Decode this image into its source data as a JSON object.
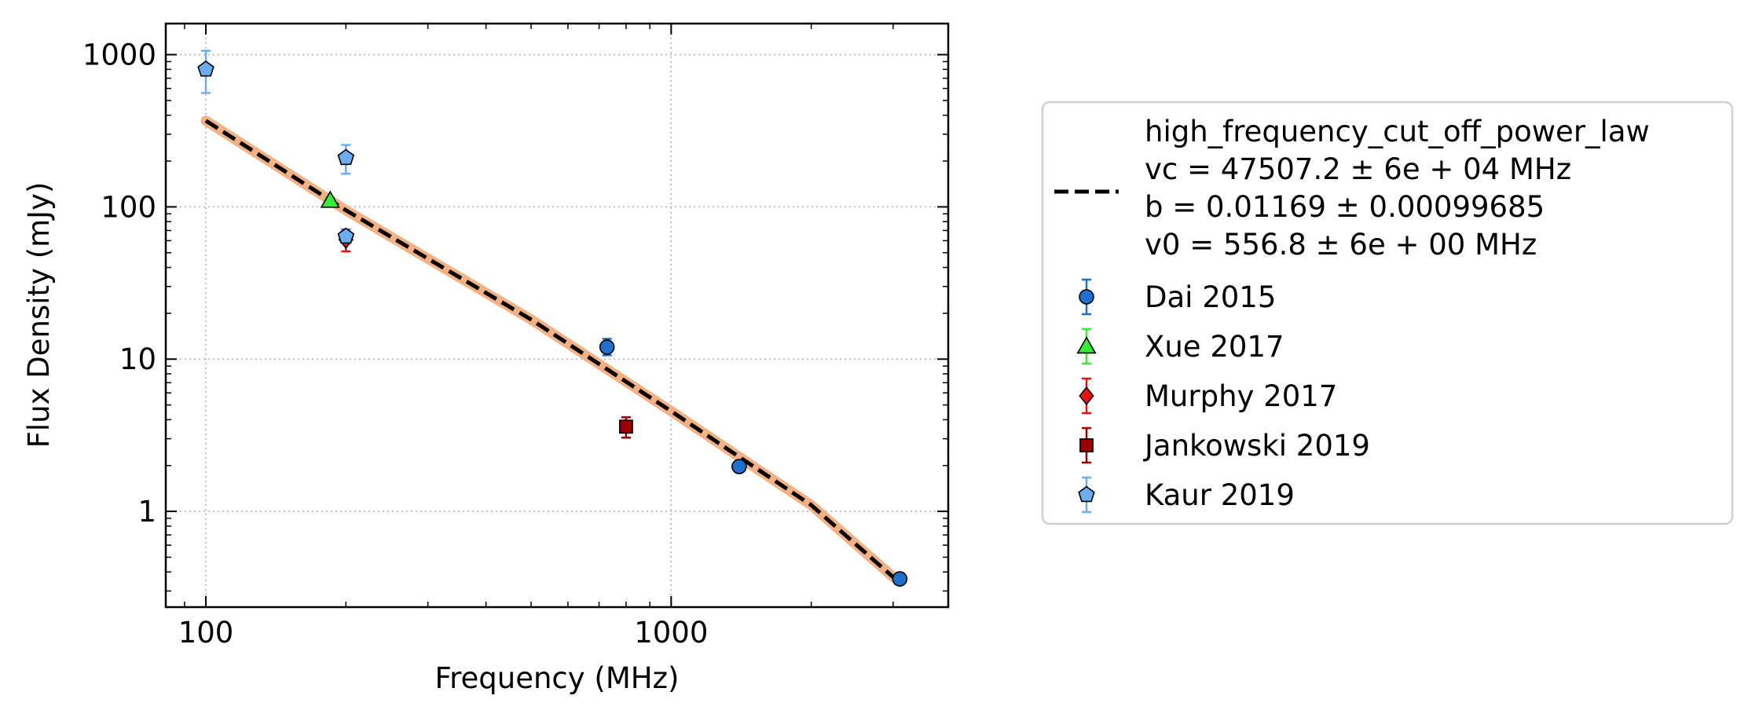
{
  "chart_data": {
    "type": "scatter",
    "xlabel": "Frequency (MHz)",
    "ylabel": "Flux Density (mJy)",
    "xscale": "log",
    "yscale": "log",
    "xlim": [
      82,
      3940
    ],
    "ylim": [
      0.235,
      1600
    ],
    "grid": true,
    "legend_position": "right, outside plot",
    "x_ticks": [
      {
        "value": 100,
        "label": "100"
      },
      {
        "value": 1000,
        "label": "1000"
      }
    ],
    "y_ticks": [
      {
        "value": 1,
        "label": "1"
      },
      {
        "value": 10,
        "label": "10"
      },
      {
        "value": 100,
        "label": "100"
      },
      {
        "value": 1000,
        "label": "1000"
      }
    ],
    "fit": {
      "model": "high_frequency_cut_off_power_law",
      "color": "#000000",
      "band_color": "#f4b183",
      "curve": [
        {
          "x": 100,
          "y": 368
        },
        {
          "x": 200,
          "y": 95
        },
        {
          "x": 500,
          "y": 18.2
        },
        {
          "x": 1000,
          "y": 4.55
        },
        {
          "x": 1500,
          "y": 1.98
        },
        {
          "x": 2000,
          "y": 1.1
        },
        {
          "x": 3000,
          "y": 0.37
        }
      ],
      "legend_lines": [
        "high_frequency_cut_off_power_law",
        "vc = 47507.2 ± 6e + 04 MHz",
        "b = 0.01169 ± 0.00099685",
        "v0 = 556.8 ± 6e + 00 MHz"
      ]
    },
    "series": [
      {
        "name": "Dai 2015",
        "marker": "circle",
        "color": "#1f6fcf",
        "errcolor": "#1f6fcf",
        "points": [
          {
            "x": 728,
            "y": 12,
            "ylo": 10.6,
            "yhi": 13.6
          },
          {
            "x": 1400,
            "y": 1.97,
            "ylo": 1.87,
            "yhi": 2.07
          },
          {
            "x": 3100,
            "y": 0.36,
            "ylo": 0.345,
            "yhi": 0.375
          }
        ]
      },
      {
        "name": "Xue 2017",
        "marker": "triangle",
        "color": "#33ee33",
        "errcolor": "#33ee33",
        "points": [
          {
            "x": 185,
            "y": 110,
            "ylo": 105,
            "yhi": 115
          }
        ]
      },
      {
        "name": "Murphy 2017",
        "marker": "diamond",
        "color": "#ee1111",
        "errcolor": "#ee1111",
        "points": [
          {
            "x": 200,
            "y": 61,
            "ylo": 51,
            "yhi": 71
          }
        ]
      },
      {
        "name": "Jankowski 2019",
        "marker": "square",
        "color": "#990000",
        "errcolor": "#990000",
        "points": [
          {
            "x": 800,
            "y": 3.6,
            "ylo": 3.05,
            "yhi": 4.15
          }
        ]
      },
      {
        "name": "Kaur 2019",
        "marker": "pentagon",
        "color": "#6aaef0",
        "errcolor": "#6aaef0",
        "points": [
          {
            "x": 100,
            "y": 800,
            "ylo": 560,
            "yhi": 1060
          },
          {
            "x": 200,
            "y": 210,
            "ylo": 165,
            "yhi": 255
          },
          {
            "x": 200,
            "y": 64,
            "ylo": 58,
            "yhi": 70
          }
        ]
      }
    ]
  }
}
